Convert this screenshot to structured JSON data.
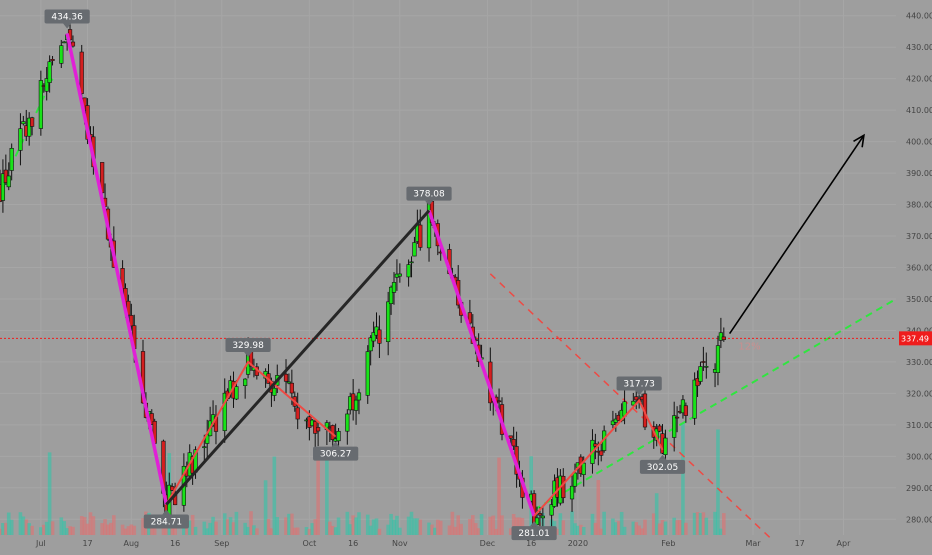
{
  "chart_data": {
    "type": "candlestick",
    "price_axis": {
      "min": 275,
      "max": 445,
      "ticks": [
        280,
        290,
        300,
        310,
        320,
        330,
        340,
        350,
        360,
        370,
        380,
        390,
        400,
        410,
        420,
        430,
        440
      ],
      "tick_labels": [
        "280.00",
        "290.00",
        "300.00",
        "310.00",
        "320.00",
        "330.00",
        "340.00",
        "350.00",
        "360.00",
        "370.00",
        "380.00",
        "390.00",
        "400.00",
        "410.00",
        "420.00",
        "430.00",
        "440.00"
      ]
    },
    "time_axis": {
      "start_date": "2019-06-17",
      "end_date": "2020-04-19",
      "labels": [
        {
          "text": "Jul",
          "date": "2019-07-01"
        },
        {
          "text": "17",
          "date": "2019-07-17"
        },
        {
          "text": "Aug",
          "date": "2019-08-01"
        },
        {
          "text": "16",
          "date": "2019-08-16"
        },
        {
          "text": "Sep",
          "date": "2019-09-01"
        },
        {
          "text": "Oct",
          "date": "2019-10-01"
        },
        {
          "text": "16",
          "date": "2019-10-16"
        },
        {
          "text": "Nov",
          "date": "2019-11-01"
        },
        {
          "text": "Dec",
          "date": "2019-12-01"
        },
        {
          "text": "16",
          "date": "2019-12-16"
        },
        {
          "text": "2020",
          "date": "2020-01-01"
        },
        {
          "text": "Feb",
          "date": "2020-02-01"
        },
        {
          "text": "Mar",
          "date": "2020-03-01"
        },
        {
          "text": "17",
          "date": "2020-03-17"
        },
        {
          "text": "Apr",
          "date": "2020-04-01"
        }
      ]
    },
    "pivots": [
      {
        "date": "2019-07-10",
        "price": 434.36,
        "label": "434.36",
        "kind": "high"
      },
      {
        "date": "2019-08-13",
        "price": 284.71,
        "label": "284.71",
        "kind": "low"
      },
      {
        "date": "2019-09-10",
        "price": 329.98,
        "label": "329.98",
        "kind": "high"
      },
      {
        "date": "2019-10-10",
        "price": 306.27,
        "label": "306.27",
        "kind": "low"
      },
      {
        "date": "2019-11-11",
        "price": 378.08,
        "label": "378.08",
        "kind": "high"
      },
      {
        "date": "2019-12-17",
        "price": 281.01,
        "label": "281.01",
        "kind": "low"
      },
      {
        "date": "2020-01-22",
        "price": 317.73,
        "label": "317.73",
        "kind": "high"
      },
      {
        "date": "2020-01-30",
        "price": 302.05,
        "label": "302.05",
        "kind": "low"
      }
    ],
    "current_price": {
      "value": 337.49,
      "label": "337.49"
    },
    "drawings": {
      "magenta_down_legs": [
        [
          {
            "date": "2019-07-10",
            "price": 434.36
          },
          {
            "date": "2019-08-13",
            "price": 284.71
          }
        ],
        [
          {
            "date": "2019-11-11",
            "price": 378.08
          },
          {
            "date": "2019-12-17",
            "price": 281.01
          }
        ]
      ],
      "red_zigzag": [
        {
          "date": "2019-08-13",
          "price": 284.71
        },
        {
          "date": "2019-09-10",
          "price": 329.98
        },
        {
          "date": "2019-10-10",
          "price": 306.27
        }
      ],
      "red_zigzag_2": [
        {
          "date": "2019-12-17",
          "price": 281.01
        },
        {
          "date": "2020-01-22",
          "price": 317.73
        },
        {
          "date": "2020-01-30",
          "price": 302.05
        }
      ],
      "black_trendline": [
        {
          "date": "2019-08-13",
          "price": 284.71
        },
        {
          "date": "2019-11-11",
          "price": 378.08
        }
      ],
      "green_uptrend_dashed": [
        {
          "date": "2019-12-17",
          "price": 283
        },
        {
          "date": "2020-04-19",
          "price": 350
        }
      ],
      "green_early_dashed": [
        {
          "date": "2019-06-17",
          "price": 385
        },
        {
          "date": "2019-07-05",
          "price": 420
        }
      ],
      "red_downtrend_dashed": [
        {
          "date": "2019-12-02",
          "price": 358
        },
        {
          "date": "2020-03-07",
          "price": 274
        }
      ],
      "black_arrow": [
        {
          "date": "2020-02-22",
          "price": 339
        },
        {
          "date": "2020-04-08",
          "price": 402
        }
      ],
      "faint_label": "12%"
    },
    "colors": {
      "background": "#9e9e9e",
      "up": "#19e319",
      "down": "#d41f1f",
      "magenta": "#e021d6",
      "red_line": "#ee4a44",
      "black_line": "#262626",
      "green_dash": "#2fe63f",
      "price_line": "#ef1c1c",
      "pivot_label_bg": "#676b70"
    }
  }
}
